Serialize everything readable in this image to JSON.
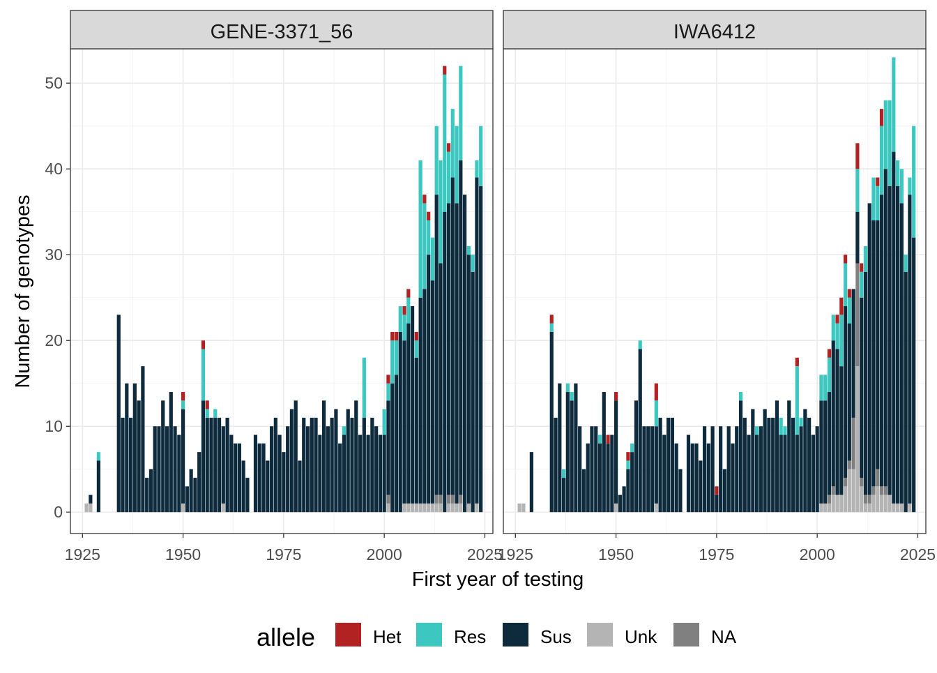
{
  "chart_data": {
    "type": "bar",
    "stacked": true,
    "facet_labels": [
      "GENE-3371_56",
      "IWA6412"
    ],
    "xlabel": "First year of testing",
    "ylabel": "Number of genotypes",
    "xlim": [
      1922,
      2027
    ],
    "ylim": [
      -2.5,
      54
    ],
    "x_ticks": [
      1925,
      1950,
      1975,
      2000,
      2025
    ],
    "x_tick_labels": [
      "1925",
      "1950",
      "1975",
      "2000",
      "2025"
    ],
    "y_ticks": [
      0,
      10,
      20,
      30,
      40,
      50
    ],
    "y_tick_labels": [
      "0",
      "10",
      "20",
      "30",
      "40",
      "50"
    ],
    "grid": true,
    "legend": {
      "position": "bottom",
      "title": "allele",
      "labels": [
        "Het",
        "Res",
        "Sus",
        "Unk",
        "NA"
      ]
    },
    "colors": {
      "Het": "#B22222",
      "Res": "#3CC8C0",
      "Sus": "#0E2A3D",
      "Unk": "#B4B4B4",
      "NA": "#808080"
    },
    "stack_order": [
      "Unk",
      "NA",
      "Sus",
      "Res",
      "Het"
    ],
    "x": [
      1926,
      1927,
      1929,
      1930,
      1934,
      1935,
      1936,
      1937,
      1938,
      1939,
      1940,
      1941,
      1942,
      1943,
      1944,
      1945,
      1946,
      1947,
      1948,
      1949,
      1950,
      1951,
      1952,
      1953,
      1954,
      1955,
      1956,
      1957,
      1958,
      1959,
      1960,
      1961,
      1962,
      1963,
      1964,
      1965,
      1966,
      1968,
      1969,
      1970,
      1971,
      1972,
      1973,
      1974,
      1975,
      1976,
      1977,
      1978,
      1979,
      1980,
      1981,
      1982,
      1983,
      1984,
      1985,
      1986,
      1987,
      1988,
      1989,
      1990,
      1991,
      1992,
      1993,
      1994,
      1995,
      1996,
      1997,
      1998,
      1999,
      2000,
      2001,
      2002,
      2003,
      2004,
      2005,
      2006,
      2007,
      2008,
      2009,
      2010,
      2011,
      2012,
      2013,
      2014,
      2015,
      2016,
      2017,
      2018,
      2019,
      2020,
      2021,
      2022,
      2023,
      2024
    ],
    "series": [
      {
        "facet": "GENE-3371_56",
        "alleles": [
          {
            "name": "Unk",
            "values": [
              1,
              1,
              0,
              0,
              0,
              0,
              0,
              0,
              0,
              0,
              0,
              0,
              0,
              0,
              0,
              0,
              0,
              0,
              0,
              0,
              1,
              0,
              0,
              0,
              0,
              0,
              0,
              0,
              0,
              0,
              1,
              0,
              0,
              0,
              0,
              0,
              0,
              0,
              0,
              0,
              0,
              0,
              0,
              0,
              0,
              0,
              0,
              0,
              0,
              0,
              0,
              0,
              0,
              0,
              0,
              0,
              0,
              0,
              0,
              0,
              0,
              0,
              0,
              0,
              0,
              0,
              0,
              0,
              0,
              0,
              1,
              0,
              0,
              0,
              1,
              1,
              1,
              1,
              1,
              1,
              1,
              1,
              1,
              1,
              0,
              1,
              1,
              1,
              1,
              0,
              1,
              0,
              1,
              0
            ]
          },
          {
            "name": "NA",
            "values": [
              0,
              0,
              0,
              0,
              0,
              0,
              0,
              0,
              0,
              0,
              0,
              0,
              0,
              0,
              0,
              0,
              0,
              0,
              0,
              0,
              0,
              0,
              0,
              0,
              0,
              0,
              0,
              0,
              0,
              0,
              0,
              0,
              0,
              0,
              0,
              0,
              0,
              0,
              0,
              0,
              0,
              0,
              0,
              0,
              0,
              0,
              0,
              0,
              0,
              0,
              0,
              0,
              0,
              0,
              0,
              0,
              0,
              0,
              0,
              0,
              0,
              0,
              0,
              0,
              0,
              0,
              0,
              0,
              0,
              0,
              1,
              0,
              0,
              0,
              0,
              0,
              0,
              0,
              0,
              0,
              0,
              0,
              1,
              1,
              0,
              1,
              1,
              0,
              1,
              0,
              0,
              0,
              0,
              0
            ]
          },
          {
            "name": "Sus",
            "values": [
              0,
              1,
              6,
              0,
              23,
              11,
              15,
              11,
              15,
              13,
              17,
              4,
              5,
              10,
              10,
              13,
              10,
              14,
              10,
              9,
              11,
              3,
              5,
              4,
              7,
              13,
              11,
              11,
              11,
              11,
              9,
              11,
              9,
              8,
              8,
              6,
              4,
              9,
              8,
              8,
              6,
              10,
              11,
              9,
              7,
              10,
              12,
              13,
              6,
              11,
              10,
              11,
              11,
              9,
              13,
              10,
              11,
              12,
              8,
              9,
              12,
              11,
              13,
              9,
              11,
              9,
              11,
              10,
              9,
              9,
              11,
              15,
              16,
              21,
              19,
              21,
              23,
              17,
              24,
              25,
              29,
              26,
              35,
              27,
              35,
              34,
              37,
              35,
              39,
              37,
              29,
              28,
              38,
              38
            ]
          },
          {
            "name": "Res",
            "values": [
              0,
              0,
              1,
              0,
              0,
              0,
              0,
              0,
              0,
              0,
              0,
              0,
              0,
              0,
              0,
              0,
              0,
              0,
              0,
              0,
              1,
              0,
              0,
              0,
              0,
              6,
              1,
              0,
              1,
              0,
              0,
              0,
              0,
              0,
              0,
              0,
              0,
              0,
              0,
              0,
              0,
              0,
              0,
              0,
              0,
              0,
              0,
              0,
              0,
              0,
              0,
              0,
              0,
              0,
              0,
              0,
              0,
              0,
              0,
              1,
              0,
              0,
              0,
              0,
              7,
              0,
              0,
              0,
              0,
              3,
              2,
              5,
              4,
              3,
              3,
              3,
              0,
              2,
              16,
              10,
              4,
              5,
              8,
              12,
              16,
              6,
              8,
              9,
              11,
              0,
              1,
              2,
              2,
              7
            ]
          },
          {
            "name": "Het",
            "values": [
              0,
              0,
              0,
              0,
              0,
              0,
              0,
              0,
              0,
              0,
              0,
              0,
              0,
              0,
              0,
              0,
              0,
              0,
              0,
              0,
              1,
              0,
              0,
              0,
              0,
              1,
              1,
              0,
              0,
              0,
              0,
              0,
              0,
              0,
              0,
              0,
              0,
              0,
              0,
              0,
              0,
              0,
              0,
              0,
              0,
              0,
              0,
              0,
              0,
              0,
              0,
              0,
              0,
              0,
              0,
              0,
              0,
              0,
              0,
              0,
              0,
              0,
              0,
              0,
              0,
              0,
              0,
              0,
              0,
              0,
              1,
              1,
              1,
              0,
              1,
              1,
              0,
              1,
              0,
              1,
              1,
              0,
              0,
              0,
              1,
              1,
              0,
              0,
              0,
              0,
              0,
              0,
              0,
              0
            ]
          }
        ]
      },
      {
        "facet": "IWA6412",
        "alleles": [
          {
            "name": "Unk",
            "values": [
              1,
              1,
              0,
              0,
              0,
              0,
              0,
              0,
              0,
              0,
              0,
              0,
              0,
              0,
              0,
              0,
              0,
              0,
              0,
              0,
              1,
              0,
              0,
              0,
              0,
              0,
              0,
              0,
              0,
              0,
              1,
              0,
              0,
              0,
              0,
              0,
              0,
              0,
              0,
              0,
              0,
              0,
              0,
              0,
              0,
              0,
              0,
              0,
              0,
              0,
              0,
              0,
              0,
              0,
              0,
              0,
              0,
              0,
              0,
              0,
              0,
              0,
              0,
              0,
              0,
              0,
              0,
              0,
              0,
              0,
              1,
              1,
              1,
              2,
              2,
              2,
              3,
              5,
              5,
              17,
              3,
              1,
              1,
              2,
              3,
              2,
              2,
              2,
              1,
              1,
              1,
              0,
              1,
              0
            ]
          },
          {
            "name": "NA",
            "values": [
              0,
              0,
              0,
              0,
              0,
              0,
              0,
              0,
              0,
              0,
              0,
              0,
              0,
              0,
              0,
              0,
              0,
              0,
              0,
              0,
              0,
              0,
              0,
              0,
              0,
              0,
              0,
              0,
              0,
              0,
              0,
              0,
              0,
              0,
              0,
              0,
              0,
              0,
              0,
              0,
              0,
              0,
              0,
              0,
              0,
              0,
              0,
              0,
              0,
              0,
              0,
              0,
              0,
              0,
              0,
              0,
              0,
              0,
              0,
              0,
              0,
              0,
              0,
              0,
              0,
              0,
              0,
              0,
              0,
              0,
              0,
              0,
              1,
              1,
              0,
              0,
              1,
              1,
              6,
              12,
              1,
              1,
              1,
              1,
              2,
              1,
              1,
              0,
              0,
              0,
              0,
              0,
              0,
              0
            ]
          },
          {
            "name": "Sus",
            "values": [
              0,
              0,
              7,
              0,
              21,
              11,
              15,
              4,
              14,
              13,
              15,
              10,
              5,
              8,
              10,
              10,
              8,
              14,
              8,
              9,
              12,
              2,
              3,
              5,
              7,
              13,
              19,
              10,
              10,
              10,
              9,
              11,
              9,
              11,
              11,
              8,
              5,
              9,
              8,
              8,
              6,
              10,
              8,
              10,
              2,
              10,
              5,
              10,
              8,
              10,
              13,
              11,
              9,
              12,
              9,
              10,
              12,
              11,
              11,
              13,
              9,
              9,
              13,
              11,
              9,
              10,
              12,
              11,
              9,
              10,
              12,
              12,
              12,
              17,
              17,
              15,
              20,
              16,
              15,
              6,
              21,
              26,
              34,
              31,
              29,
              34,
              37,
              36,
              41,
              37,
              35,
              28,
              36,
              32
            ]
          },
          {
            "name": "Res",
            "values": [
              0,
              0,
              0,
              0,
              1,
              0,
              0,
              1,
              1,
              1,
              0,
              0,
              0,
              0,
              0,
              0,
              1,
              0,
              0,
              0,
              0,
              0,
              0,
              1,
              1,
              0,
              1,
              0,
              0,
              0,
              3,
              0,
              0,
              0,
              0,
              0,
              0,
              0,
              0,
              0,
              0,
              0,
              0,
              0,
              0,
              0,
              0,
              0,
              0,
              0,
              1,
              0,
              0,
              0,
              1,
              0,
              0,
              0,
              0,
              0,
              2,
              1,
              0,
              0,
              8,
              1,
              0,
              0,
              0,
              0,
              3,
              3,
              4,
              3,
              3,
              6,
              5,
              3,
              0,
              5,
              3,
              3,
              0,
              5,
              4,
              8,
              8,
              10,
              11,
              3,
              4,
              2,
              2,
              13
            ]
          },
          {
            "name": "Het",
            "values": [
              0,
              0,
              0,
              0,
              1,
              0,
              0,
              0,
              0,
              0,
              0,
              0,
              0,
              0,
              0,
              0,
              0,
              0,
              1,
              0,
              1,
              0,
              0,
              1,
              0,
              0,
              0,
              0,
              0,
              0,
              2,
              0,
              0,
              0,
              0,
              0,
              0,
              0,
              0,
              0,
              0,
              0,
              0,
              0,
              1,
              0,
              0,
              0,
              0,
              0,
              0,
              0,
              0,
              0,
              0,
              0,
              0,
              0,
              0,
              0,
              0,
              0,
              0,
              0,
              1,
              0,
              0,
              0,
              0,
              0,
              0,
              0,
              1,
              0,
              1,
              2,
              1,
              1,
              0,
              3,
              1,
              0,
              0,
              0,
              1,
              2,
              0,
              0,
              0,
              0,
              0,
              0,
              0,
              0
            ]
          }
        ]
      }
    ]
  }
}
